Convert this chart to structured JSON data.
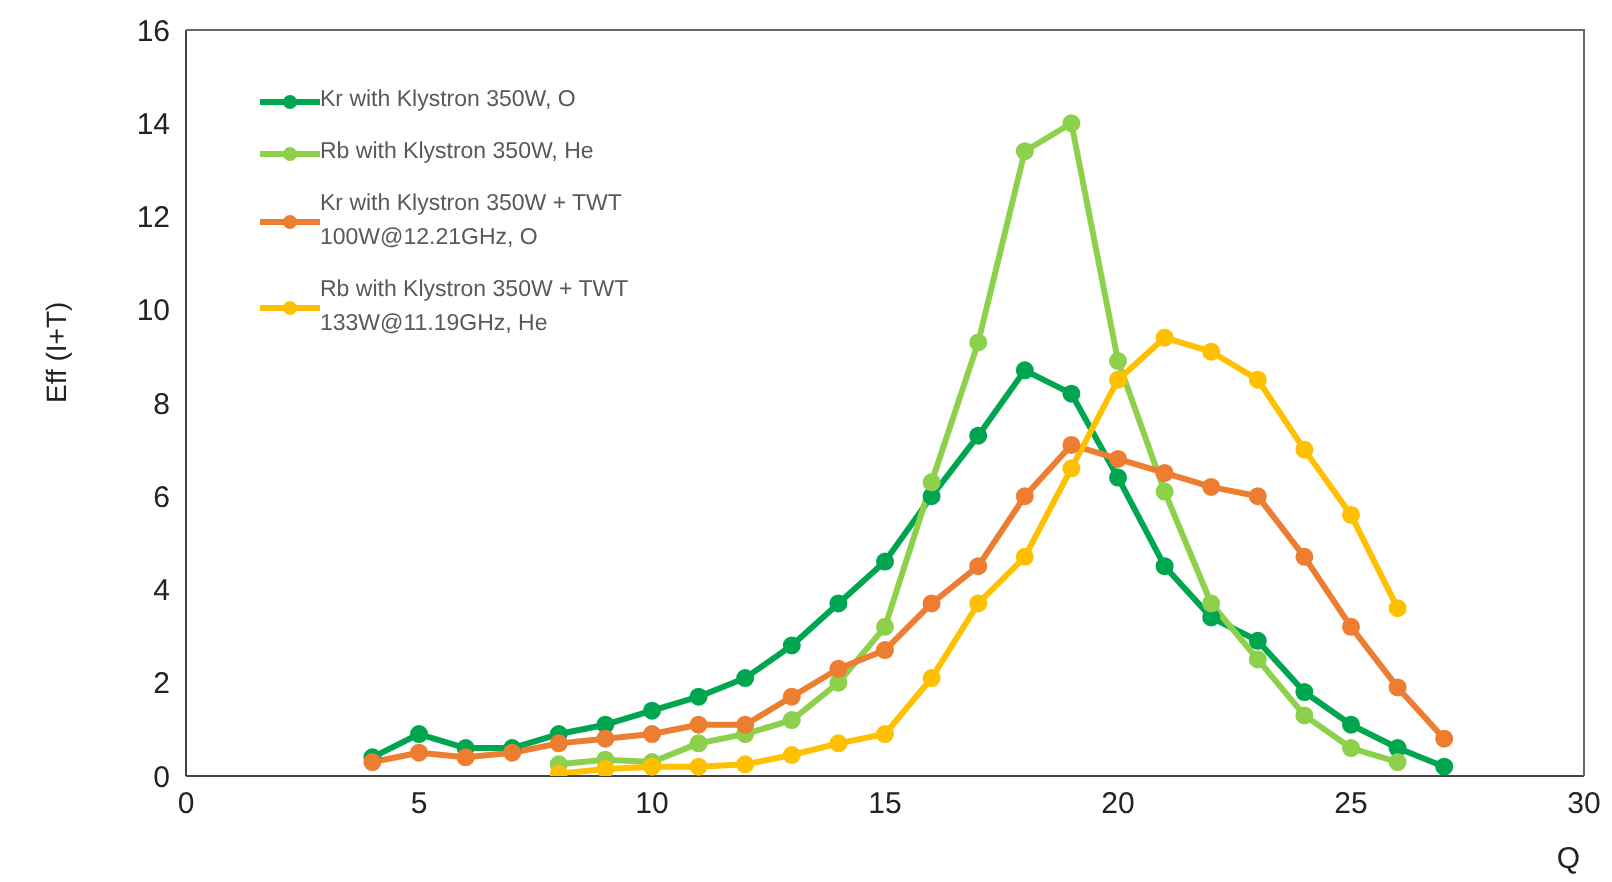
{
  "chart_data": {
    "type": "line",
    "xlabel": "Q",
    "ylabel": "Eff (I+T)",
    "xlim": [
      0,
      30
    ],
    "xticks": [
      0,
      5,
      10,
      15,
      20,
      25,
      30
    ],
    "ylim": [
      0,
      16
    ],
    "yticks": [
      0,
      2,
      4,
      6,
      8,
      10,
      12,
      14,
      16
    ],
    "legend": "top left",
    "marker": "circle",
    "line_style": "solid",
    "series": [
      {
        "name": "Kr with Klystron 350W, O",
        "color": "#00a550",
        "x": [
          4,
          5,
          6,
          7,
          8,
          9,
          10,
          11,
          12,
          13,
          14,
          15,
          16,
          17,
          18,
          19,
          20,
          21,
          22,
          23,
          24,
          25,
          26,
          27
        ],
        "values": [
          0.4,
          0.9,
          0.6,
          0.6,
          0.9,
          1.1,
          1.4,
          1.7,
          2.1,
          2.8,
          3.7,
          4.6,
          6.0,
          7.3,
          8.7,
          8.2,
          6.4,
          4.5,
          3.4,
          2.9,
          1.8,
          1.1,
          0.6,
          0.2
        ]
      },
      {
        "name": "Rb with Klystron 350W, He",
        "color": "#8dd04b",
        "x": [
          8,
          9,
          10,
          11,
          12,
          13,
          14,
          15,
          16,
          17,
          18,
          19,
          20,
          21,
          22,
          23,
          24,
          25,
          26
        ],
        "values": [
          0.25,
          0.35,
          0.3,
          0.7,
          0.9,
          1.2,
          2.0,
          3.2,
          6.3,
          9.3,
          13.4,
          14.0,
          8.9,
          6.1,
          3.7,
          2.5,
          1.3,
          0.6,
          0.3
        ]
      },
      {
        "name": "Kr with Klystron 350W + TWT 100W@12.21GHz, O",
        "color": "#ed7d31",
        "x": [
          4,
          5,
          6,
          7,
          8,
          9,
          10,
          11,
          12,
          13,
          14,
          15,
          16,
          17,
          18,
          19,
          20,
          21,
          22,
          23,
          24,
          25,
          26,
          27
        ],
        "values": [
          0.3,
          0.5,
          0.4,
          0.5,
          0.7,
          0.8,
          0.9,
          1.1,
          1.1,
          1.7,
          2.3,
          2.7,
          3.7,
          4.5,
          6.0,
          7.1,
          6.8,
          6.5,
          6.2,
          6.0,
          4.7,
          3.2,
          1.9,
          0.8
        ]
      },
      {
        "name": "Rb with Klystron 350W + TWT 133W@11.19GHz, He",
        "color": "#ffc000",
        "x": [
          8,
          9,
          10,
          11,
          12,
          13,
          14,
          15,
          16,
          17,
          18,
          19,
          20,
          21,
          22,
          23,
          24,
          25,
          26
        ],
        "values": [
          0.05,
          0.15,
          0.2,
          0.2,
          0.25,
          0.45,
          0.7,
          0.9,
          2.1,
          3.7,
          4.7,
          6.6,
          8.5,
          9.4,
          9.1,
          8.5,
          7.0,
          5.6,
          3.6
        ]
      }
    ]
  }
}
